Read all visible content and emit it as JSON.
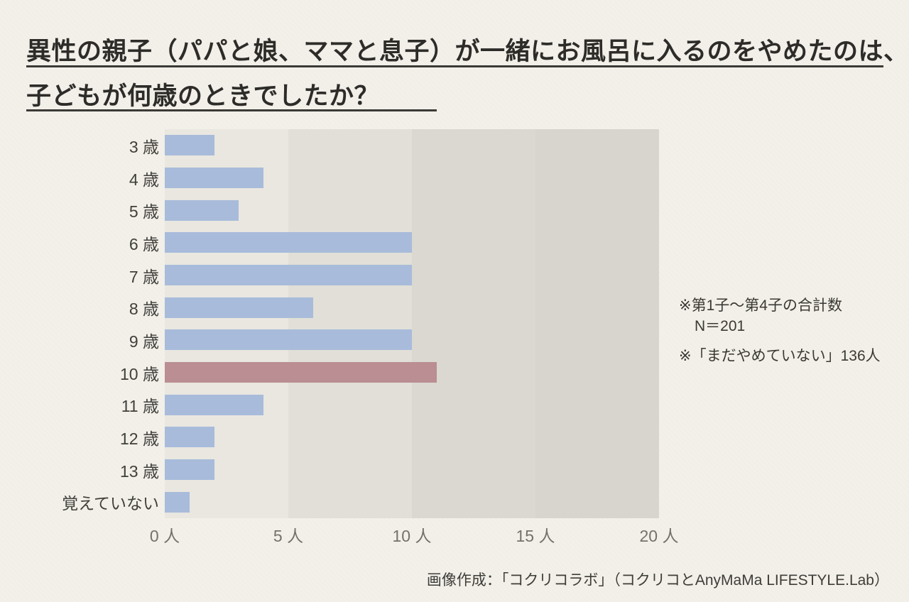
{
  "title": {
    "line1": "異性の親子（パパと娘、ママと息子）が一緒にお風呂に入るのをやめたのは、",
    "line2": "子どもが何歳のときでしたか？"
  },
  "chart_data": {
    "type": "bar",
    "orientation": "horizontal",
    "categories": [
      "3 歳",
      "4 歳",
      "5 歳",
      "6 歳",
      "7 歳",
      "8 歳",
      "9 歳",
      "10 歳",
      "11 歳",
      "12 歳",
      "13 歳",
      "覚えていない"
    ],
    "values": [
      2,
      4,
      3,
      10,
      10,
      6,
      10,
      11,
      4,
      2,
      2,
      1
    ],
    "unit": "人",
    "xlim": [
      0,
      20
    ],
    "x_tick_values": [
      0,
      5,
      10,
      15,
      20
    ],
    "x_tick_labels": [
      "0 人",
      "5 人",
      "10 人",
      "15 人",
      "20 人"
    ],
    "highlight_index": 7,
    "highlight_category": "10 歳",
    "bar_color": "#a8bbda",
    "highlight_color": "#ba8e92",
    "plot_band_colors": [
      "#e9e7e0",
      "#e1dfd8",
      "#dad8d1",
      "#d7d5ce"
    ],
    "grid": "vertical-bands-every-5"
  },
  "annotations": {
    "note1_line1": "※第1子～第4子の合計数",
    "note1_line2": "N＝201",
    "note2": "※「まだやめていない」136人"
  },
  "footer": {
    "credit": "画像作成：「コクリコラボ」（コクリコとAnyMaMa LIFESTYLE.Lab）"
  },
  "colors": {
    "background": "#f2f0e9",
    "title_text": "#2d2c29",
    "rule": "#3b3a36",
    "category_text": "#403f3a",
    "tick_text": "#73726a",
    "note_text": "#3a3933"
  }
}
